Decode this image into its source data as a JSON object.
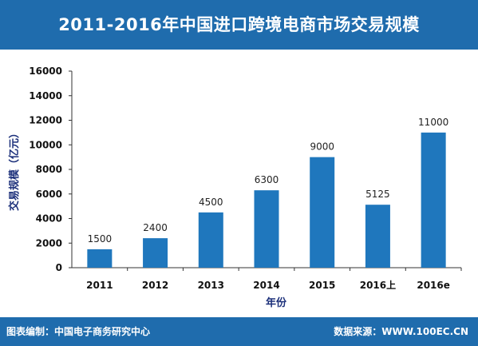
{
  "title": "2011-2016年中国进口跨境电商市场交易规模",
  "footer": {
    "left": "图表编制：中国电子商务研究中心",
    "right": "数据来源：WWW.100EC.CN"
  },
  "colors": {
    "header_bg": "#1f6cad",
    "bar": "#1f77bd"
  },
  "chart_data": {
    "type": "bar",
    "categories": [
      "2011",
      "2012",
      "2013",
      "2014",
      "2015",
      "2016上",
      "2016e"
    ],
    "values": [
      1500,
      2400,
      4500,
      6300,
      9000,
      5125,
      11000
    ],
    "value_labels": [
      "1500",
      "2400",
      "4500",
      "6300",
      "9000",
      "5125",
      "11000"
    ],
    "xlabel": "年份",
    "ylabel": "交易规模（亿元）",
    "ylim": [
      0,
      16000
    ],
    "yticks": [
      0,
      2000,
      4000,
      6000,
      8000,
      10000,
      12000,
      14000,
      16000
    ],
    "grid": false,
    "legend": "none"
  }
}
